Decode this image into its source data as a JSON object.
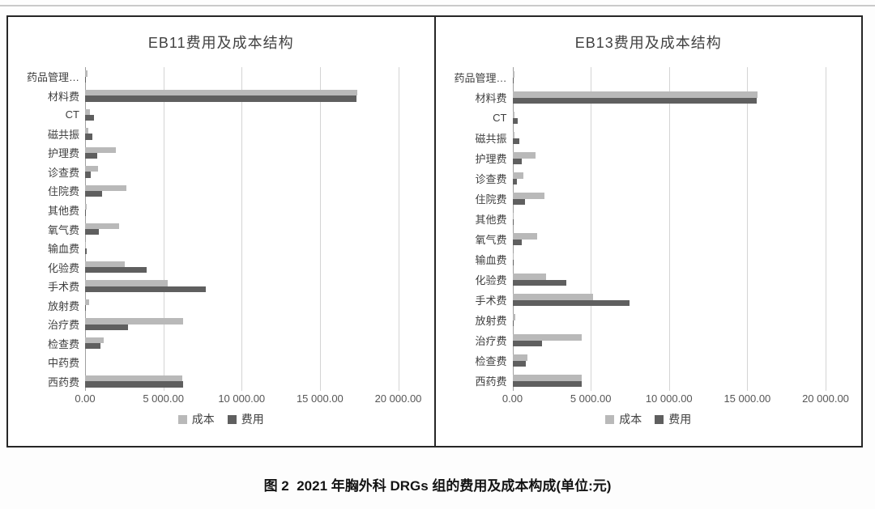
{
  "page": {
    "caption": "图 2  2021 年胸外科 DRGs 组的费用及成本构成(单位:元)"
  },
  "colors": {
    "cost_series": "#b9b9b9",
    "fee_series": "#5f5f5f",
    "gridline": "#d4d4d4",
    "axis_line": "#9f9f9f",
    "box_border": "#262626"
  },
  "chart_data": [
    {
      "type": "bar",
      "orientation": "horizontal",
      "title": "EB11费用及成本结构",
      "categories": [
        "药品管理…",
        "材料费",
        "CT",
        "磁共振",
        "护理费",
        "诊查费",
        "住院费",
        "其他费",
        "氧气费",
        "输血费",
        "化验费",
        "手术费",
        "放射费",
        "治疗费",
        "检查费",
        "中药费",
        "西药费"
      ],
      "series": [
        {
          "name": "成本",
          "color": "#b9b9b9",
          "values": [
            180,
            17400,
            300,
            200,
            1970,
            850,
            2650,
            90,
            2190,
            60,
            2530,
            5300,
            260,
            6240,
            1200,
            0,
            6200
          ]
        },
        {
          "name": "费用",
          "color": "#5f5f5f",
          "values": [
            60,
            17350,
            560,
            450,
            800,
            340,
            1080,
            30,
            890,
            110,
            3930,
            7730,
            60,
            2740,
            990,
            0,
            6240
          ]
        }
      ],
      "xlim": [
        0,
        20000
      ],
      "xticks": [
        "0.00",
        "5 000.00",
        "10 000.00",
        "15 000.00",
        "20 000.00"
      ],
      "grid": true,
      "legend_position": "bottom"
    },
    {
      "type": "bar",
      "orientation": "horizontal",
      "title": "EB13费用及成本结构",
      "categories": [
        "药品管理…",
        "材料费",
        "CT",
        "磁共振",
        "护理费",
        "诊查费",
        "住院费",
        "其他费",
        "氧气费",
        "输血费",
        "化验费",
        "手术费",
        "放射费",
        "治疗费",
        "检查费",
        "西药费"
      ],
      "series": [
        {
          "name": "成本",
          "color": "#b9b9b9",
          "values": [
            120,
            15640,
            120,
            150,
            1450,
            700,
            2030,
            30,
            1570,
            60,
            2170,
            5170,
            200,
            4450,
            980,
            4450
          ]
        },
        {
          "name": "费用",
          "color": "#5f5f5f",
          "values": [
            50,
            15600,
            330,
            450,
            570,
            280,
            820,
            20,
            620,
            90,
            3450,
            7480,
            60,
            1900,
            870,
            4400
          ]
        }
      ],
      "xlim": [
        0,
        20000
      ],
      "xticks": [
        "0.00",
        "5 000.00",
        "10 000.00",
        "15 000.00",
        "20 000.00"
      ],
      "grid": true,
      "legend_position": "bottom"
    }
  ]
}
